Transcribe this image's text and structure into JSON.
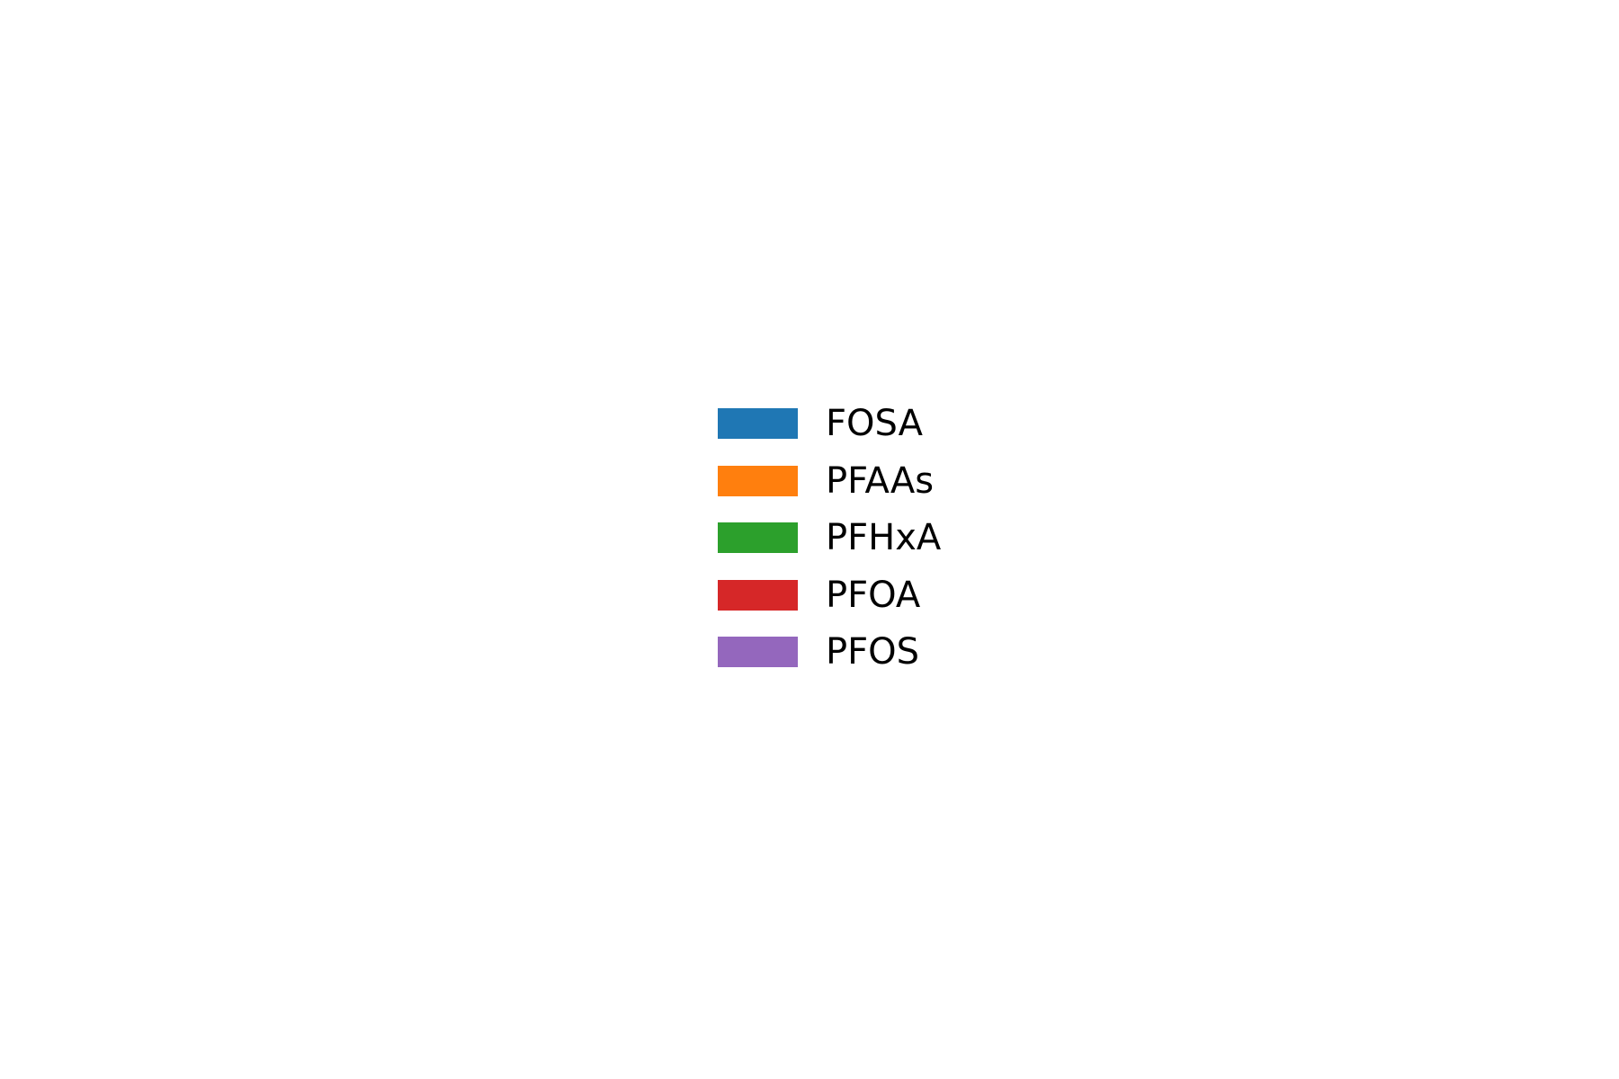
{
  "chart_data": {
    "type": "legend",
    "legend": {
      "placement": "center",
      "entries": [
        {
          "label": "FOSA",
          "color": "#1f77b4"
        },
        {
          "label": "PFAAs",
          "color": "#ff7f0e"
        },
        {
          "label": "PFHxA",
          "color": "#2ca02c"
        },
        {
          "label": "PFOA",
          "color": "#d62728"
        },
        {
          "label": "PFOS",
          "color": "#9467bd"
        }
      ]
    }
  }
}
